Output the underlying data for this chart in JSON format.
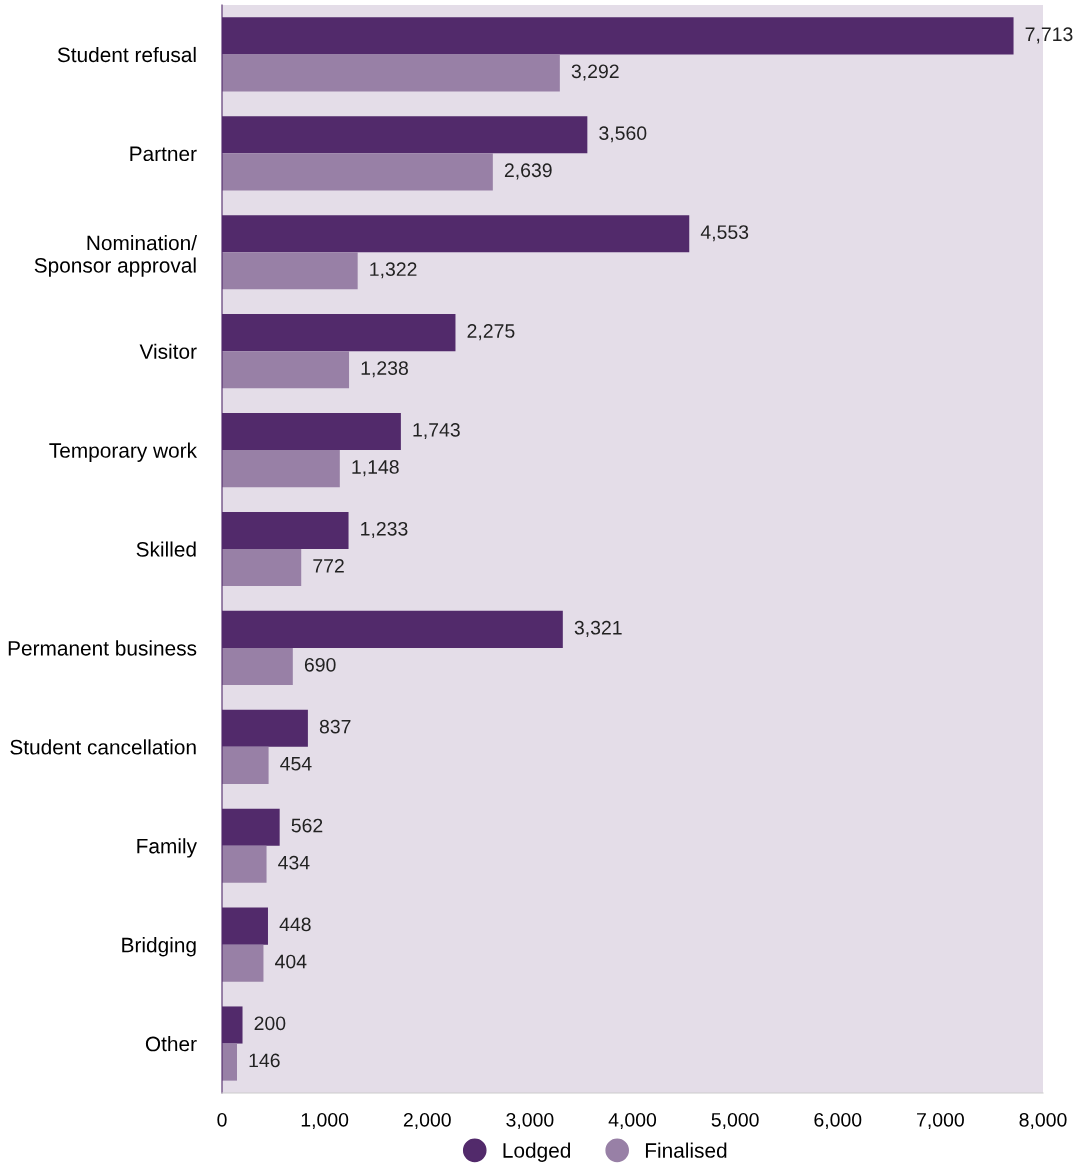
{
  "chart_data": {
    "type": "bar",
    "orientation": "horizontal",
    "categories": [
      "Student refusal",
      "Partner",
      "Nomination/\nSponsor approval",
      "Visitor",
      "Temporary work",
      "Skilled",
      "Permanent business",
      "Student cancellation",
      "Family",
      "Bridging",
      "Other"
    ],
    "series": [
      {
        "name": "Lodged",
        "color": "#522a6b",
        "values": [
          7713,
          3560,
          4553,
          2275,
          1743,
          1233,
          3321,
          837,
          562,
          448,
          200
        ],
        "value_labels": [
          "7,713",
          "3,560",
          "4,553",
          "2,275",
          "1,743",
          "1,233",
          "3,321",
          "837",
          "562",
          "448",
          "200"
        ]
      },
      {
        "name": "Finalised",
        "color": "#9880a6",
        "values": [
          3292,
          2639,
          1322,
          1238,
          1148,
          772,
          690,
          454,
          434,
          404,
          146
        ],
        "value_labels": [
          "3,292",
          "2,639",
          "1,322",
          "1,238",
          "1,148",
          "772",
          "690",
          "454",
          "434",
          "404",
          "146"
        ]
      }
    ],
    "xlim": [
      0,
      8000
    ],
    "xticks": [
      0,
      {
        "value": 1000,
        "label": "1,000"
      },
      {
        "value": 2000,
        "label": "2,000"
      },
      {
        "value": 3000,
        "label": "3,000"
      },
      {
        "value": 4000,
        "label": "4,000"
      },
      {
        "value": 5000,
        "label": "5,000"
      },
      {
        "value": 6000,
        "label": "6,000"
      },
      {
        "value": 7000,
        "label": "7,000"
      },
      {
        "value": 8000,
        "label": "8,000"
      }
    ],
    "legend": "bottom",
    "grid": false
  }
}
